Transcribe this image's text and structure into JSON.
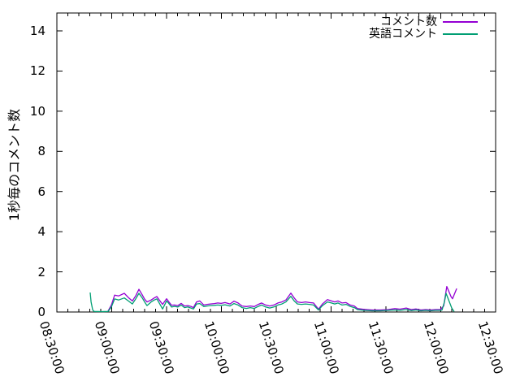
{
  "chart_data": {
    "type": "line",
    "title": "",
    "xlabel": "",
    "ylabel": "1秒毎のコメント数",
    "x_unit": "minutes after 08:30:00",
    "x_ticks": [
      "08:30:00",
      "09:00:00",
      "09:30:00",
      "10:00:00",
      "10:30:00",
      "11:00:00",
      "11:30:00",
      "12:00:00",
      "12:30:00"
    ],
    "x_tick_minutes": [
      0,
      30,
      60,
      90,
      120,
      150,
      180,
      210,
      240
    ],
    "x_minor_step_minutes": 6,
    "y_ticks": [
      "0",
      "2",
      "4",
      "6",
      "8",
      "10",
      "12",
      "14"
    ],
    "y_tick_values": [
      0,
      2,
      4,
      6,
      8,
      10,
      12,
      14
    ],
    "ylim": [
      0,
      15
    ],
    "xlim_minutes": [
      0,
      240
    ],
    "grid": false,
    "legend_position": "top-right-inside",
    "series": [
      {
        "name": "コメント数",
        "color": "#9400d3",
        "points": [
          [
            28,
            0.05
          ],
          [
            29.8,
            0.35
          ],
          [
            31.6,
            0.84
          ],
          [
            33.8,
            0.8
          ],
          [
            36.9,
            0.93
          ],
          [
            39.1,
            0.72
          ],
          [
            41.3,
            0.55
          ],
          [
            43.1,
            0.8
          ],
          [
            44.9,
            1.13
          ],
          [
            46.7,
            0.85
          ],
          [
            48,
            0.64
          ],
          [
            49.3,
            0.5
          ],
          [
            51.6,
            0.6
          ],
          [
            53.3,
            0.7
          ],
          [
            54.7,
            0.77
          ],
          [
            56,
            0.6
          ],
          [
            57.8,
            0.38
          ],
          [
            60,
            0.66
          ],
          [
            61.3,
            0.5
          ],
          [
            62.7,
            0.34
          ],
          [
            64.4,
            0.35
          ],
          [
            66.2,
            0.32
          ],
          [
            68,
            0.43
          ],
          [
            69.8,
            0.3
          ],
          [
            71.6,
            0.32
          ],
          [
            73.3,
            0.28
          ],
          [
            74.7,
            0.22
          ],
          [
            76.4,
            0.5
          ],
          [
            78.2,
            0.55
          ],
          [
            80.4,
            0.35
          ],
          [
            82.2,
            0.38
          ],
          [
            84,
            0.4
          ],
          [
            86.2,
            0.42
          ],
          [
            88,
            0.45
          ],
          [
            89.8,
            0.43
          ],
          [
            92,
            0.47
          ],
          [
            94.7,
            0.4
          ],
          [
            96.9,
            0.54
          ],
          [
            99.1,
            0.45
          ],
          [
            101.3,
            0.3
          ],
          [
            103.6,
            0.27
          ],
          [
            105.8,
            0.3
          ],
          [
            108,
            0.27
          ],
          [
            110.2,
            0.38
          ],
          [
            112,
            0.45
          ],
          [
            114.2,
            0.35
          ],
          [
            116.4,
            0.3
          ],
          [
            118.7,
            0.35
          ],
          [
            120.9,
            0.45
          ],
          [
            123.1,
            0.5
          ],
          [
            125.3,
            0.6
          ],
          [
            128,
            0.94
          ],
          [
            129.8,
            0.7
          ],
          [
            131.6,
            0.5
          ],
          [
            133.8,
            0.47
          ],
          [
            136,
            0.5
          ],
          [
            138.2,
            0.47
          ],
          [
            140.4,
            0.45
          ],
          [
            143.1,
            0.14
          ],
          [
            145.3,
            0.4
          ],
          [
            148,
            0.62
          ],
          [
            150.2,
            0.55
          ],
          [
            152,
            0.5
          ],
          [
            153.8,
            0.55
          ],
          [
            156,
            0.45
          ],
          [
            158.2,
            0.47
          ],
          [
            160.4,
            0.35
          ],
          [
            162.7,
            0.3
          ],
          [
            164.4,
            0.17
          ],
          [
            168,
            0.13
          ],
          [
            172.4,
            0.1
          ],
          [
            176.9,
            0.1
          ],
          [
            181.3,
            0.12
          ],
          [
            184.9,
            0.17
          ],
          [
            187.6,
            0.14
          ],
          [
            191.1,
            0.2
          ],
          [
            193.8,
            0.12
          ],
          [
            196.4,
            0.15
          ],
          [
            199.1,
            0.1
          ],
          [
            201.8,
            0.12
          ],
          [
            204.4,
            0.1
          ],
          [
            207.1,
            0.12
          ],
          [
            209.8,
            0.12
          ],
          [
            211.6,
            0.3
          ],
          [
            213.3,
            1.27
          ],
          [
            215.6,
            0.77
          ],
          [
            216.4,
            0.66
          ],
          [
            218.7,
            1.17
          ]
        ]
      },
      {
        "name": "英語コメント",
        "color": "#009e73",
        "points": [
          [
            18.2,
            0.97
          ],
          [
            18.7,
            0.5
          ],
          [
            19.6,
            0.1
          ],
          [
            20.4,
            0.03
          ],
          [
            24.4,
            0.02
          ],
          [
            28,
            0.03
          ],
          [
            29.8,
            0.25
          ],
          [
            31.6,
            0.65
          ],
          [
            33.8,
            0.6
          ],
          [
            36.9,
            0.7
          ],
          [
            39.1,
            0.55
          ],
          [
            41.3,
            0.4
          ],
          [
            43.1,
            0.65
          ],
          [
            44.9,
            0.93
          ],
          [
            46.7,
            0.7
          ],
          [
            48,
            0.5
          ],
          [
            49.3,
            0.32
          ],
          [
            51.6,
            0.5
          ],
          [
            53.3,
            0.6
          ],
          [
            54.7,
            0.65
          ],
          [
            56,
            0.45
          ],
          [
            57.8,
            0.15
          ],
          [
            60,
            0.55
          ],
          [
            61.3,
            0.42
          ],
          [
            62.7,
            0.25
          ],
          [
            64.4,
            0.28
          ],
          [
            66.2,
            0.25
          ],
          [
            68,
            0.35
          ],
          [
            69.8,
            0.22
          ],
          [
            71.6,
            0.25
          ],
          [
            73.3,
            0.2
          ],
          [
            74.7,
            0.15
          ],
          [
            76.4,
            0.4
          ],
          [
            78.2,
            0.42
          ],
          [
            80.4,
            0.27
          ],
          [
            82.2,
            0.3
          ],
          [
            84,
            0.32
          ],
          [
            86.2,
            0.33
          ],
          [
            88,
            0.35
          ],
          [
            89.8,
            0.33
          ],
          [
            92,
            0.36
          ],
          [
            94.7,
            0.3
          ],
          [
            96.9,
            0.42
          ],
          [
            99.1,
            0.35
          ],
          [
            101.3,
            0.22
          ],
          [
            103.6,
            0.18
          ],
          [
            105.8,
            0.22
          ],
          [
            108,
            0.18
          ],
          [
            110.2,
            0.28
          ],
          [
            112,
            0.35
          ],
          [
            114.2,
            0.25
          ],
          [
            116.4,
            0.2
          ],
          [
            118.7,
            0.25
          ],
          [
            120.9,
            0.35
          ],
          [
            123.1,
            0.4
          ],
          [
            125.3,
            0.5
          ],
          [
            128,
            0.78
          ],
          [
            129.8,
            0.55
          ],
          [
            131.6,
            0.4
          ],
          [
            133.8,
            0.38
          ],
          [
            136,
            0.4
          ],
          [
            138.2,
            0.38
          ],
          [
            140.4,
            0.35
          ],
          [
            143.1,
            0.1
          ],
          [
            145.3,
            0.32
          ],
          [
            148,
            0.5
          ],
          [
            150.2,
            0.45
          ],
          [
            152,
            0.4
          ],
          [
            153.8,
            0.45
          ],
          [
            156,
            0.35
          ],
          [
            158.2,
            0.38
          ],
          [
            160.4,
            0.28
          ],
          [
            162.7,
            0.22
          ],
          [
            164.4,
            0.12
          ],
          [
            168,
            0.08
          ],
          [
            172.4,
            0.06
          ],
          [
            176.9,
            0.06
          ],
          [
            181.3,
            0.08
          ],
          [
            184.9,
            0.1
          ],
          [
            187.6,
            0.08
          ],
          [
            191.1,
            0.12
          ],
          [
            193.8,
            0.07
          ],
          [
            196.4,
            0.1
          ],
          [
            199.1,
            0.06
          ],
          [
            201.8,
            0.08
          ],
          [
            204.4,
            0.06
          ],
          [
            207.1,
            0.08
          ],
          [
            209.8,
            0.08
          ],
          [
            210.7,
            0.1
          ],
          [
            212,
            0.5
          ],
          [
            212.9,
            0.93
          ],
          [
            214.7,
            0.5
          ],
          [
            216,
            0.2
          ],
          [
            217.3,
            0.02
          ]
        ]
      }
    ]
  },
  "colors": {
    "axis": "#000000",
    "background": "#ffffff",
    "text": "#000000"
  }
}
